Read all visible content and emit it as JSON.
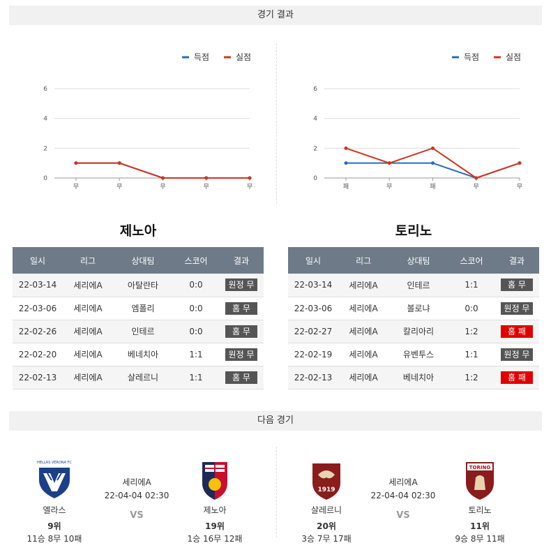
{
  "sections": {
    "results_title": "경기 결과",
    "next_title": "다음 경기"
  },
  "legend": {
    "scored": "득점",
    "conceded": "실점",
    "scored_color": "#2a6db0",
    "conceded_color": "#d0341f"
  },
  "chart_data": [
    {
      "type": "line",
      "categories": [
        "무",
        "무",
        "무",
        "무",
        "무"
      ],
      "series": [
        {
          "name": "득점",
          "values": [
            1,
            1,
            0,
            0,
            0
          ]
        },
        {
          "name": "실점",
          "values": [
            1,
            1,
            0,
            0,
            0
          ]
        }
      ],
      "yticks": [
        0,
        2,
        4,
        6
      ],
      "ylim": [
        0,
        6
      ],
      "grid": true,
      "legend_position": "top-right"
    },
    {
      "type": "line",
      "categories": [
        "패",
        "무",
        "패",
        "무",
        "무"
      ],
      "series": [
        {
          "name": "득점",
          "values": [
            1,
            1,
            1,
            0,
            1
          ]
        },
        {
          "name": "실점",
          "values": [
            2,
            1,
            2,
            0,
            1
          ]
        }
      ],
      "yticks": [
        0,
        2,
        4,
        6
      ],
      "ylim": [
        0,
        6
      ],
      "grid": true,
      "legend_position": "top-right"
    }
  ],
  "left_team": {
    "title": "제노아",
    "headers": [
      "일시",
      "리그",
      "상대팀",
      "스코어",
      "결과"
    ],
    "rows": [
      {
        "date": "22-03-14",
        "league": "세리에A",
        "opponent": "아탈란타",
        "score": "0:0",
        "result": "원정 무",
        "loss": false
      },
      {
        "date": "22-03-06",
        "league": "세리에A",
        "opponent": "엠폴리",
        "score": "0:0",
        "result": "홈 무",
        "loss": false
      },
      {
        "date": "22-02-26",
        "league": "세리에A",
        "opponent": "인테르",
        "score": "0:0",
        "result": "홈 무",
        "loss": false
      },
      {
        "date": "22-02-20",
        "league": "세리에A",
        "opponent": "베네치아",
        "score": "1:1",
        "result": "원정 무",
        "loss": false
      },
      {
        "date": "22-02-13",
        "league": "세리에A",
        "opponent": "살레르니",
        "score": "1:1",
        "result": "홈 무",
        "loss": false
      }
    ]
  },
  "right_team": {
    "title": "토리노",
    "headers": [
      "일시",
      "리그",
      "상대팀",
      "스코어",
      "결과"
    ],
    "rows": [
      {
        "date": "22-03-14",
        "league": "세리에A",
        "opponent": "인테르",
        "score": "1:1",
        "result": "홈 무",
        "loss": false
      },
      {
        "date": "22-03-06",
        "league": "세리에A",
        "opponent": "볼로냐",
        "score": "0:0",
        "result": "원정 무",
        "loss": false
      },
      {
        "date": "22-02-27",
        "league": "세리에A",
        "opponent": "칼리아리",
        "score": "1:2",
        "result": "홈 패",
        "loss": true
      },
      {
        "date": "22-02-19",
        "league": "세리에A",
        "opponent": "유벤투스",
        "score": "1:1",
        "result": "원정 무",
        "loss": false
      },
      {
        "date": "22-02-13",
        "league": "세리에A",
        "opponent": "베네치아",
        "score": "1:2",
        "result": "홈 패",
        "loss": true
      }
    ]
  },
  "next_matches": [
    {
      "league": "세리에A",
      "datetime": "22-04-04 02:30",
      "vs": "VS",
      "home": {
        "name": "엘라스",
        "rank": "9위",
        "record": "11승 8무 10패",
        "logo_text": "HELLAS VERONA FC",
        "logo_color": "#1c3f8c"
      },
      "away": {
        "name": "제노아",
        "rank": "19위",
        "record": "1승 16무 12패",
        "logo_color": "#c8102e"
      }
    },
    {
      "league": "세리에A",
      "datetime": "22-04-04 02:30",
      "vs": "VS",
      "home": {
        "name": "살레르니",
        "rank": "20위",
        "record": "3승 7무 17패",
        "logo_text": "1919",
        "logo_color": "#8a1c1c"
      },
      "away": {
        "name": "토리노",
        "rank": "11위",
        "record": "9승 8무 11패",
        "logo_text": "TORINO",
        "logo_color": "#8a1c1c"
      }
    }
  ]
}
